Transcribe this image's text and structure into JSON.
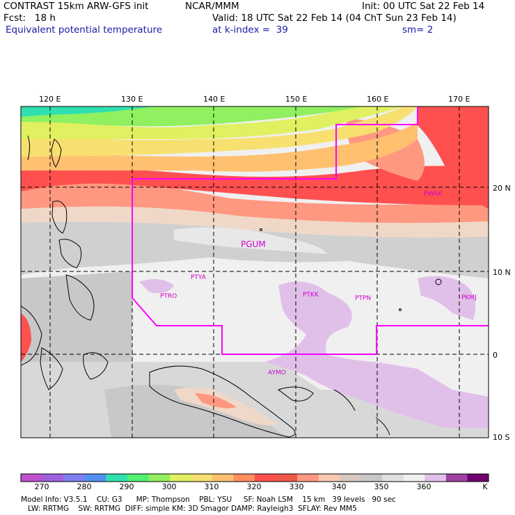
{
  "header": {
    "title_left": "CONTRAST 15km ARW-GFS init",
    "title_center": "NCAR/MMM",
    "init": "Init: 00 UTC Sat 22 Feb 14",
    "fcst": "Fcst:   18 h",
    "valid": "Valid: 18 UTC Sat 22 Feb 14 (04 ChT Sun 23 Feb 14)",
    "field": "Equivalent potential temperature",
    "level": "at k-index =  39",
    "smoothing": "sm= 2"
  },
  "map": {
    "lon_labels": [
      "120 E",
      "130 E",
      "140 E",
      "150 E",
      "160 E",
      "170 E"
    ],
    "lat_labels": [
      "20 N",
      "10 N",
      "0",
      "10 S"
    ],
    "stations": [
      "PTYA",
      "PGUM",
      "PTRO",
      "PTKK",
      "PTPN",
      "PKMJ",
      "PWAK",
      "AYMO"
    ],
    "colors": {
      "boundary": "#ff00ff",
      "station": "#cc00cc",
      "grid": "#000000",
      "coast": "#000000"
    }
  },
  "colorbar": {
    "labels": [
      "270",
      "280",
      "290",
      "300",
      "310",
      "320",
      "330",
      "340",
      "350",
      "360"
    ],
    "unit": "K",
    "colors": [
      "#c050d0",
      "#a060e0",
      "#8080f0",
      "#5090f0",
      "#30e0b0",
      "#50f070",
      "#90f060",
      "#e0f060",
      "#f8e070",
      "#ffc070",
      "#ff9060",
      "#ff5050",
      "#f05848",
      "#ff9880",
      "#f8c8b0",
      "#d8c8c0",
      "#c8c8c8",
      "#e0e0e0",
      "#f0f0f0",
      "#e0c0e8",
      "#a040a0",
      "#700070"
    ]
  },
  "footer": {
    "line1": "Model Info: V3.5.1    CU: G3      MP: Thompson    PBL: YSU     SF: Noah LSM    15 km   39 levels   90 sec",
    "line2": "   LW: RRTMG    SW: RRTMG  DIFF: simple KM: 3D Smagor DAMP: Rayleigh3  SFLAY: Rev MM5"
  }
}
